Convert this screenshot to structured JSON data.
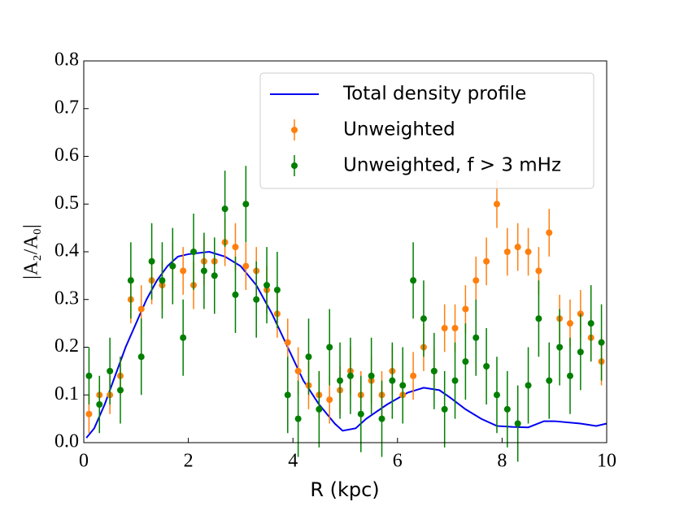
{
  "chart_data": {
    "type": "errorbar",
    "xlabel": "R (kpc)",
    "ylabel": "|A₂/A₀|",
    "xlim": [
      0,
      10
    ],
    "xticks": [
      0,
      2,
      4,
      6,
      8,
      10
    ],
    "ylim": [
      0,
      0.8
    ],
    "yticks": [
      {
        "value": 0,
        "label": "0.0"
      },
      0.1,
      0.2,
      0.3,
      0.4,
      0.5,
      0.6,
      0.7,
      0.8
    ],
    "legend": "upper right",
    "series": [
      {
        "name": "Total density profile",
        "style": "line",
        "color": "#0000ee",
        "x": [
          0.05,
          0.2,
          0.4,
          0.6,
          0.8,
          1.0,
          1.2,
          1.4,
          1.6,
          1.8,
          2.0,
          2.4,
          2.7,
          3.0,
          3.3,
          3.6,
          3.9,
          4.2,
          4.5,
          4.8,
          4.95,
          5.2,
          5.4,
          5.8,
          6.2,
          6.5,
          6.8,
          7.0,
          7.3,
          7.6,
          7.9,
          8.2,
          8.5,
          8.8,
          9.0,
          9.5,
          9.8,
          10
        ],
        "values": [
          0.01,
          0.03,
          0.08,
          0.14,
          0.2,
          0.25,
          0.3,
          0.34,
          0.37,
          0.39,
          0.395,
          0.4,
          0.39,
          0.37,
          0.33,
          0.27,
          0.2,
          0.13,
          0.08,
          0.04,
          0.025,
          0.03,
          0.05,
          0.08,
          0.105,
          0.115,
          0.11,
          0.095,
          0.07,
          0.05,
          0.035,
          0.033,
          0.032,
          0.045,
          0.045,
          0.04,
          0.035,
          0.04
        ]
      },
      {
        "name": "Unweighted",
        "style": "errorbar",
        "color": "#ff7f0e",
        "x": [
          0.1,
          0.3,
          0.5,
          0.7,
          0.9,
          1.1,
          1.3,
          1.5,
          1.7,
          1.9,
          2.1,
          2.3,
          2.5,
          2.7,
          2.9,
          3.1,
          3.3,
          3.5,
          3.7,
          3.9,
          4.1,
          4.3,
          4.5,
          4.7,
          4.9,
          5.1,
          5.3,
          5.5,
          5.7,
          5.9,
          6.1,
          6.3,
          6.5,
          6.7,
          6.9,
          7.1,
          7.3,
          7.5,
          7.7,
          7.9,
          8.1,
          8.3,
          8.5,
          8.7,
          8.9,
          9.1,
          9.3,
          9.5,
          9.7,
          9.9
        ],
        "values": [
          0.06,
          0.1,
          0.1,
          0.14,
          0.3,
          0.28,
          0.34,
          0.33,
          0.37,
          0.36,
          0.33,
          0.38,
          0.38,
          0.42,
          0.41,
          0.37,
          0.36,
          0.32,
          0.27,
          0.21,
          0.15,
          0.12,
          0.1,
          0.09,
          0.11,
          0.15,
          0.1,
          0.13,
          0.1,
          0.15,
          0.1,
          0.14,
          0.2,
          0.15,
          0.24,
          0.24,
          0.28,
          0.34,
          0.38,
          0.5,
          0.4,
          0.41,
          0.4,
          0.36,
          0.44,
          0.26,
          0.25,
          0.27,
          0.22,
          0.17
        ],
        "errors": [
          0.04,
          0.04,
          0.04,
          0.04,
          0.05,
          0.05,
          0.05,
          0.05,
          0.05,
          0.05,
          0.05,
          0.05,
          0.05,
          0.05,
          0.05,
          0.05,
          0.05,
          0.05,
          0.05,
          0.05,
          0.05,
          0.05,
          0.05,
          0.05,
          0.05,
          0.05,
          0.05,
          0.05,
          0.05,
          0.05,
          0.05,
          0.05,
          0.05,
          0.05,
          0.05,
          0.05,
          0.05,
          0.05,
          0.05,
          0.05,
          0.05,
          0.05,
          0.05,
          0.05,
          0.05,
          0.05,
          0.05,
          0.05,
          0.05,
          0.05
        ]
      },
      {
        "name": "Unweighted, f > 3 mHz",
        "style": "errorbar",
        "color": "#007f00",
        "x": [
          0.1,
          0.3,
          0.5,
          0.7,
          0.9,
          1.1,
          1.3,
          1.5,
          1.7,
          1.9,
          2.1,
          2.3,
          2.5,
          2.7,
          2.9,
          3.1,
          3.3,
          3.5,
          3.7,
          3.9,
          4.1,
          4.3,
          4.5,
          4.7,
          4.9,
          5.1,
          5.3,
          5.5,
          5.7,
          5.9,
          6.1,
          6.3,
          6.5,
          6.7,
          6.9,
          7.1,
          7.3,
          7.5,
          7.7,
          7.9,
          8.1,
          8.3,
          8.5,
          8.7,
          8.9,
          9.1,
          9.3,
          9.5,
          9.7,
          9.9
        ],
        "values": [
          0.14,
          0.08,
          0.15,
          0.11,
          0.34,
          0.18,
          0.38,
          0.34,
          0.37,
          0.22,
          0.4,
          0.36,
          0.35,
          0.49,
          0.31,
          0.5,
          0.3,
          0.33,
          0.32,
          0.1,
          0.05,
          0.18,
          0.07,
          0.2,
          0.13,
          0.14,
          0.06,
          0.14,
          0.05,
          0.13,
          0.12,
          0.34,
          0.26,
          0.15,
          0.07,
          0.13,
          0.17,
          0.22,
          0.16,
          0.1,
          0.07,
          0.04,
          0.12,
          0.26,
          0.13,
          0.2,
          0.14,
          0.19,
          0.25,
          0.21
        ],
        "errors": [
          0.06,
          0.06,
          0.07,
          0.07,
          0.08,
          0.08,
          0.08,
          0.08,
          0.08,
          0.08,
          0.08,
          0.08,
          0.08,
          0.08,
          0.08,
          0.08,
          0.08,
          0.08,
          0.08,
          0.08,
          0.08,
          0.08,
          0.08,
          0.08,
          0.08,
          0.08,
          0.08,
          0.08,
          0.08,
          0.08,
          0.08,
          0.08,
          0.08,
          0.08,
          0.08,
          0.08,
          0.08,
          0.08,
          0.08,
          0.08,
          0.08,
          0.08,
          0.08,
          0.08,
          0.08,
          0.08,
          0.08,
          0.08,
          0.08,
          0.08
        ]
      }
    ]
  }
}
